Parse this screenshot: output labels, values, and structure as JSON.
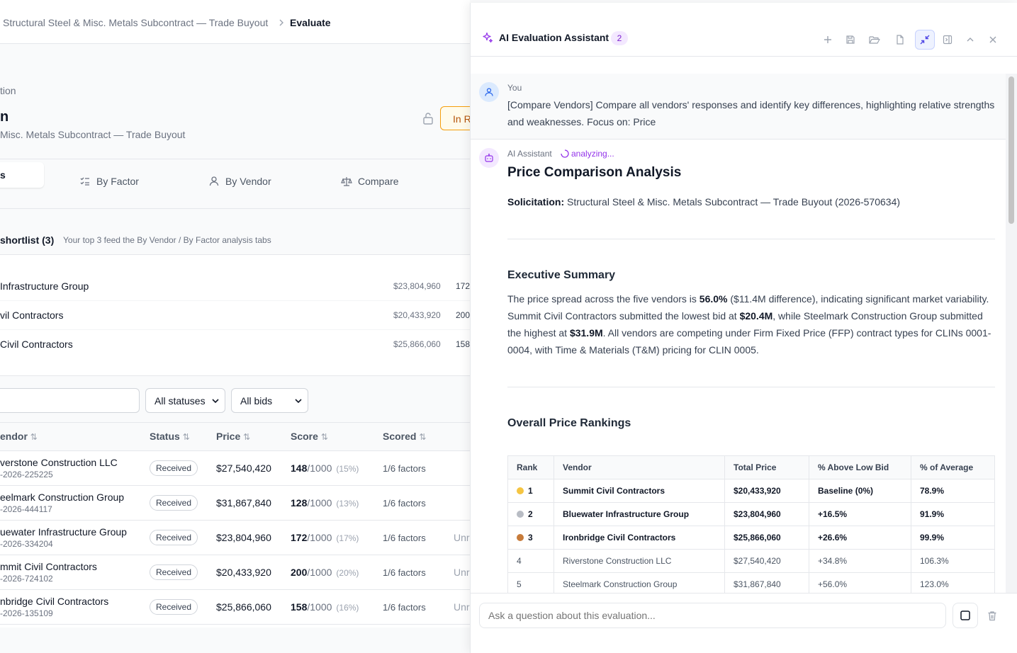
{
  "breadcrumb": {
    "parent": "Structural Steel & Misc. Metals Subcontract — Trade Buyout",
    "current": "Evaluate"
  },
  "header": {
    "subtitle": "tion",
    "title": "n",
    "name": "Misc. Metals Subcontract — Trade Buyout",
    "status": "In R"
  },
  "tabs": {
    "active": "s",
    "by_factor": "By Factor",
    "by_vendor": "By Vendor",
    "compare": "Compare"
  },
  "shortlist": {
    "title": "shortlist (3)",
    "hint": "Your top 3 feed the By Vendor / By Factor analysis tabs",
    "items": [
      {
        "name": "Infrastructure Group",
        "price": "$23,804,960",
        "score": "172"
      },
      {
        "name": "vil Contractors",
        "price": "$20,433,920",
        "score": "200"
      },
      {
        "name": "Civil Contractors",
        "price": "$25,866,060",
        "score": "158"
      }
    ]
  },
  "filters": {
    "status": "All statuses",
    "bids": "All bids"
  },
  "table": {
    "columns": {
      "vendor": "endor",
      "status": "Status",
      "price": "Price",
      "score": "Score",
      "scored": "Scored"
    },
    "rows": [
      {
        "vendor": "verstone Construction LLC",
        "id": "-2026-225225",
        "status": "Received",
        "price": "$27,540,420",
        "score": "148",
        "of": "/1000",
        "pct": "(15%)",
        "factors": "1/6 factors",
        "extra": ""
      },
      {
        "vendor": "eelmark Construction Group",
        "id": "-2026-444117",
        "status": "Received",
        "price": "$31,867,840",
        "score": "128",
        "of": "/1000",
        "pct": "(13%)",
        "factors": "1/6 factors",
        "extra": ""
      },
      {
        "vendor": "uewater Infrastructure Group",
        "id": "-2026-334204",
        "status": "Received",
        "price": "$23,804,960",
        "score": "172",
        "of": "/1000",
        "pct": "(17%)",
        "factors": "1/6 factors",
        "extra": "Unr"
      },
      {
        "vendor": "mmit Civil Contractors",
        "id": "-2026-724102",
        "status": "Received",
        "price": "$20,433,920",
        "score": "200",
        "of": "/1000",
        "pct": "(20%)",
        "factors": "1/6 factors",
        "extra": "Unr"
      },
      {
        "vendor": "nbridge Civil Contractors",
        "id": "-2026-135109",
        "status": "Received",
        "price": "$25,866,060",
        "score": "158",
        "of": "/1000",
        "pct": "(16%)",
        "factors": "1/6 factors",
        "extra": "Unr"
      }
    ]
  },
  "panel": {
    "title": "AI Evaluation Assistant",
    "badge": "2",
    "user_label": "You",
    "user_msg": "[Compare Vendors] Compare all vendors' responses and identify key differences, highlighting relative strengths and weaknesses. Focus on: Price",
    "ai_label": "AI Assistant",
    "ai_status": "analyzing...",
    "report_title": "Price Comparison Analysis",
    "solicitation_label": "Solicitation:",
    "solicitation_value": "Structural Steel & Misc. Metals Subcontract — Trade Buyout (2026-570634)",
    "exec_title": "Executive Summary",
    "exec": {
      "t1": "The price spread across the five vendors is ",
      "b1": "56.0%",
      "t2": " ($11.4M difference), indicating significant market variability. Summit Civil Contractors submitted the lowest bid at ",
      "b2": "$20.4M",
      "t3": ", while Steelmark Construction Group submitted the highest at ",
      "b3": "$31.9M",
      "t4": ". All vendors are competing under Firm Fixed Price (FFP) contract types for CLINs 0001-0004, with Time & Materials (T&M) pricing for CLIN 0005."
    },
    "rank_title": "Overall Price Rankings",
    "rank_cols": {
      "rank": "Rank",
      "vendor": "Vendor",
      "total": "Total Price",
      "above": "% Above Low Bid",
      "avg": "% of Average"
    },
    "rankings": [
      {
        "rank": "1",
        "vendor": "Summit Civil Contractors",
        "total": "$20,433,920",
        "above": "Baseline (0%)",
        "avg": "78.9%"
      },
      {
        "rank": "2",
        "vendor": "Bluewater Infrastructure Group",
        "total": "$23,804,960",
        "above": "+16.5%",
        "avg": "91.9%"
      },
      {
        "rank": "3",
        "vendor": "Ironbridge Civil Contractors",
        "total": "$25,866,060",
        "above": "+26.6%",
        "avg": "99.9%"
      },
      {
        "rank": "4",
        "vendor": "Riverstone Construction LLC",
        "total": "$27,540,420",
        "above": "+34.8%",
        "avg": "106.3%"
      },
      {
        "rank": "5",
        "vendor": "Steelmark Construction Group",
        "total": "$31,867,840",
        "above": "+56.0%",
        "avg": "123.0%"
      }
    ],
    "ask_placeholder": "Ask a question about this evaluation..."
  }
}
